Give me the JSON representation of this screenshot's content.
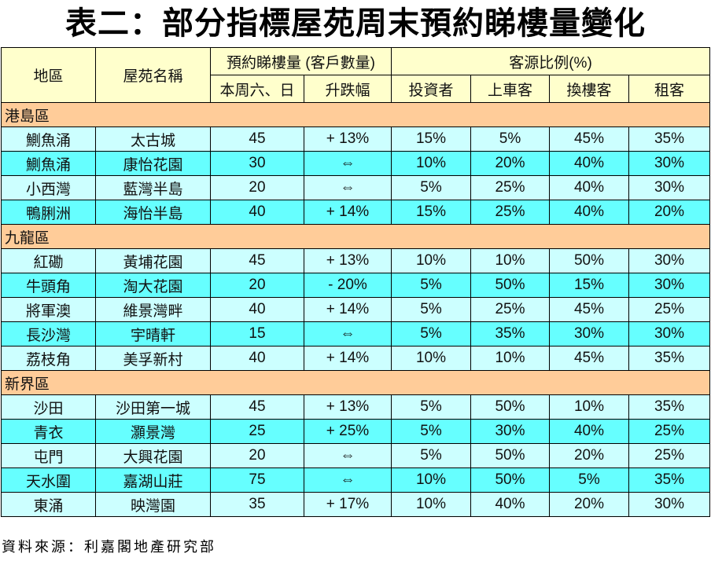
{
  "title": "表二：部分指標屋苑周末預約睇樓量變化",
  "headers": {
    "district": "地區",
    "estate": "屋苑名稱",
    "viewings": "預約睇樓量 (客戶數量)",
    "this_weekend": "本周六、日",
    "change": "升跌幅",
    "source_ratio": "客源比例(%)",
    "investor": "投資者",
    "first_buyer": "上車客",
    "upgrader": "換樓客",
    "renter": "租客"
  },
  "sections": [
    {
      "name": "港島區",
      "rows": [
        [
          "鰂魚涌",
          "太古城",
          "45",
          "+ 13%",
          "15%",
          "5%",
          "45%",
          "35%"
        ],
        [
          "鰂魚涌",
          "康怡花園",
          "30",
          "⇔",
          "10%",
          "20%",
          "40%",
          "30%"
        ],
        [
          "小西灣",
          "藍灣半島",
          "20",
          "⇔",
          "5%",
          "25%",
          "40%",
          "30%"
        ],
        [
          "鴨脷洲",
          "海怡半島",
          "40",
          "+ 14%",
          "15%",
          "25%",
          "40%",
          "20%"
        ]
      ]
    },
    {
      "name": "九龍區",
      "rows": [
        [
          "紅磡",
          "黃埔花園",
          "45",
          "+ 13%",
          "10%",
          "10%",
          "50%",
          "30%"
        ],
        [
          "牛頭角",
          "淘大花園",
          "20",
          "- 20%",
          "5%",
          "50%",
          "15%",
          "30%"
        ],
        [
          "將軍澳",
          "維景灣畔",
          "40",
          "+ 14%",
          "5%",
          "25%",
          "45%",
          "25%"
        ],
        [
          "長沙灣",
          "宇晴軒",
          "15",
          "⇔",
          "5%",
          "35%",
          "30%",
          "30%"
        ],
        [
          "荔枝角",
          "美孚新村",
          "40",
          "+ 14%",
          "10%",
          "10%",
          "45%",
          "35%"
        ]
      ]
    },
    {
      "name": "新界區",
      "rows": [
        [
          "沙田",
          "沙田第一城",
          "45",
          "+ 13%",
          "5%",
          "50%",
          "10%",
          "35%"
        ],
        [
          "青衣",
          "灝景灣",
          "25",
          "+ 25%",
          "5%",
          "30%",
          "40%",
          "25%"
        ],
        [
          "屯門",
          "大興花園",
          "20",
          "⇔",
          "5%",
          "50%",
          "20%",
          "25%"
        ],
        [
          "天水圍",
          "嘉湖山莊",
          "75",
          "⇔",
          "10%",
          "50%",
          "5%",
          "35%"
        ],
        [
          "東涌",
          "映灣園",
          "35",
          "+ 17%",
          "10%",
          "40%",
          "20%",
          "30%"
        ]
      ]
    }
  ],
  "source": "資料來源：利嘉閣地產研究部",
  "colors": {
    "header": "#ffffcc",
    "section": "#ffcc99",
    "row_light": "#ccffff",
    "row_dark": "#66ffff"
  }
}
